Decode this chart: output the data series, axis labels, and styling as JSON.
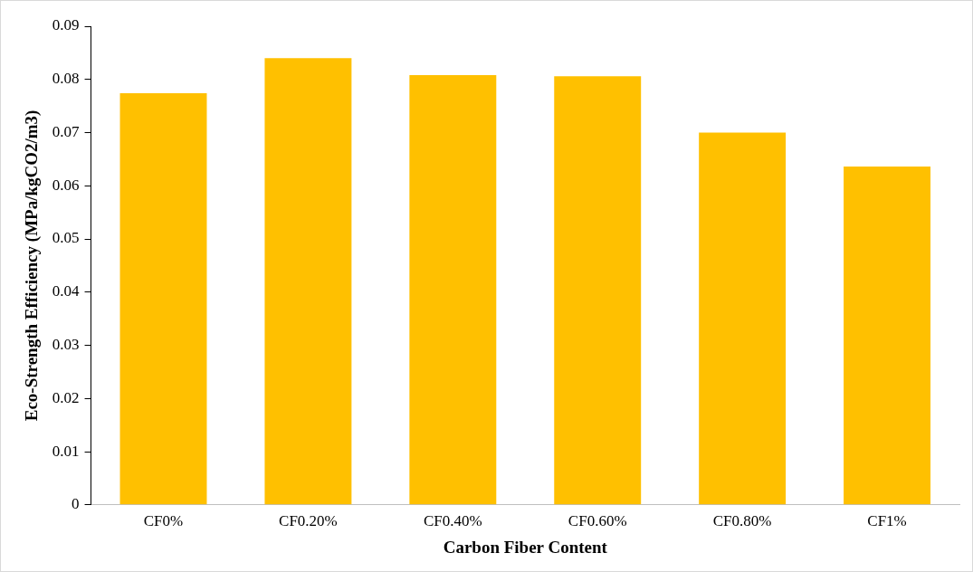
{
  "chart_data": {
    "type": "bar",
    "xlabel": "Carbon Fiber Content",
    "ylabel": "Eco-Strength Efficiency (MPa/kgCO2/m3)",
    "categories": [
      "CF0%",
      "CF0.20%",
      "CF0.40%",
      "CF0.60%",
      "CF0.80%",
      "CF1%"
    ],
    "values": [
      0.0774,
      0.084,
      0.0808,
      0.0806,
      0.07,
      0.0636
    ],
    "color": "#ffc000",
    "ylim": [
      0,
      0.09
    ],
    "yticks": [
      0,
      0.01,
      0.02,
      0.03,
      0.04,
      0.05,
      0.06,
      0.07,
      0.08,
      0.09
    ],
    "grid": false,
    "legend": false
  }
}
